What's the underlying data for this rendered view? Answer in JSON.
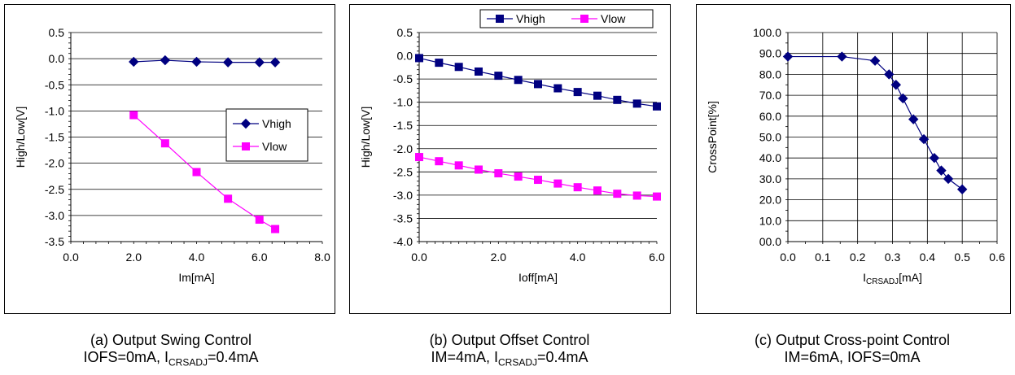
{
  "chart_data": [
    {
      "type": "line",
      "xlabel": "Im[mA]",
      "ylabel": "High/Low[V]",
      "xlim": [
        0,
        8
      ],
      "ylim": [
        -3.5,
        0.5
      ],
      "x_ticks": [
        "0.0",
        "2.0",
        "4.0",
        "6.0",
        "8.0"
      ],
      "y_ticks": [
        "0.5",
        "0.0",
        "-0.5",
        "-1.0",
        "-1.5",
        "-2.0",
        "-2.5",
        "-3.0",
        "-3.5"
      ],
      "grid": "horizontal",
      "legend_position": "right",
      "series": [
        {
          "name": "Vhigh",
          "color": "#000080",
          "marker": "diamond",
          "x": [
            2,
            3,
            4,
            5,
            6,
            6.5
          ],
          "y": [
            -0.06,
            -0.03,
            -0.06,
            -0.07,
            -0.07,
            -0.07
          ]
        },
        {
          "name": "Vlow",
          "color": "#FF00FF",
          "marker": "square",
          "x": [
            2,
            3,
            4,
            5,
            6,
            6.5
          ],
          "y": [
            -1.08,
            -1.62,
            -2.17,
            -2.68,
            -3.08,
            -3.26
          ]
        }
      ],
      "caption": [
        "(a) Output Swing Control",
        "IOFS=0mA, I",
        "CRSADJ",
        "=0.4mA"
      ]
    },
    {
      "type": "line",
      "xlabel": "Ioff[mA]",
      "ylabel": "High/Low[V]",
      "xlim": [
        0,
        6
      ],
      "ylim": [
        -4.0,
        0.5
      ],
      "x_ticks": [
        "0.0",
        "2.0",
        "4.0",
        "6.0"
      ],
      "y_ticks": [
        "0.5",
        "0.0",
        "-0.5",
        "-1.0",
        "-1.5",
        "-2.0",
        "-2.5",
        "-3.0",
        "-3.5",
        "-4.0"
      ],
      "grid": "horizontal",
      "legend_position": "top",
      "series": [
        {
          "name": "Vhigh",
          "color": "#000080",
          "marker": "square",
          "x": [
            0,
            0.5,
            1,
            1.5,
            2,
            2.5,
            3,
            3.5,
            4,
            4.5,
            5,
            5.5,
            6
          ],
          "y": [
            -0.05,
            -0.15,
            -0.24,
            -0.34,
            -0.43,
            -0.52,
            -0.61,
            -0.7,
            -0.78,
            -0.86,
            -0.95,
            -1.03,
            -1.09
          ]
        },
        {
          "name": "Vlow",
          "color": "#FF00FF",
          "marker": "square",
          "x": [
            0,
            0.5,
            1,
            1.5,
            2,
            2.5,
            3,
            3.5,
            4,
            4.5,
            5,
            5.5,
            6
          ],
          "y": [
            -2.18,
            -2.27,
            -2.36,
            -2.45,
            -2.53,
            -2.6,
            -2.67,
            -2.75,
            -2.83,
            -2.9,
            -2.97,
            -3.01,
            -3.03
          ]
        }
      ],
      "caption": [
        "(b) Output Offset Control",
        "IM=4mA, I",
        "CRSADJ",
        "=0.4mA"
      ]
    },
    {
      "type": "line",
      "xlabel_main": "I",
      "xlabel_sub": "CRSADJ",
      "xlabel_tail": "[mA]",
      "ylabel": "CrossPoint[%]",
      "xlim": [
        0,
        0.6
      ],
      "ylim": [
        0,
        100
      ],
      "x_ticks": [
        "0.0",
        "0.1",
        "0.2",
        "0.3",
        "0.4",
        "0.5",
        "0.6"
      ],
      "y_ticks": [
        "100.0",
        "90.0",
        "80.0",
        "70.0",
        "60.0",
        "50.0",
        "40.0",
        "30.0",
        "20.0",
        "10.0",
        "00.0"
      ],
      "grid": "both",
      "series": [
        {
          "color": "#000080",
          "marker": "diamond",
          "x": [
            0,
            0.155,
            0.25,
            0.29,
            0.31,
            0.33,
            0.36,
            0.39,
            0.42,
            0.44,
            0.46,
            0.5
          ],
          "y": [
            88.5,
            88.5,
            86.5,
            80,
            75,
            68.5,
            58.5,
            49,
            40,
            34,
            30,
            25
          ]
        }
      ],
      "caption": [
        "(c) Output Cross-point Control",
        "IM=6mA, IOFS=0mA"
      ]
    }
  ]
}
